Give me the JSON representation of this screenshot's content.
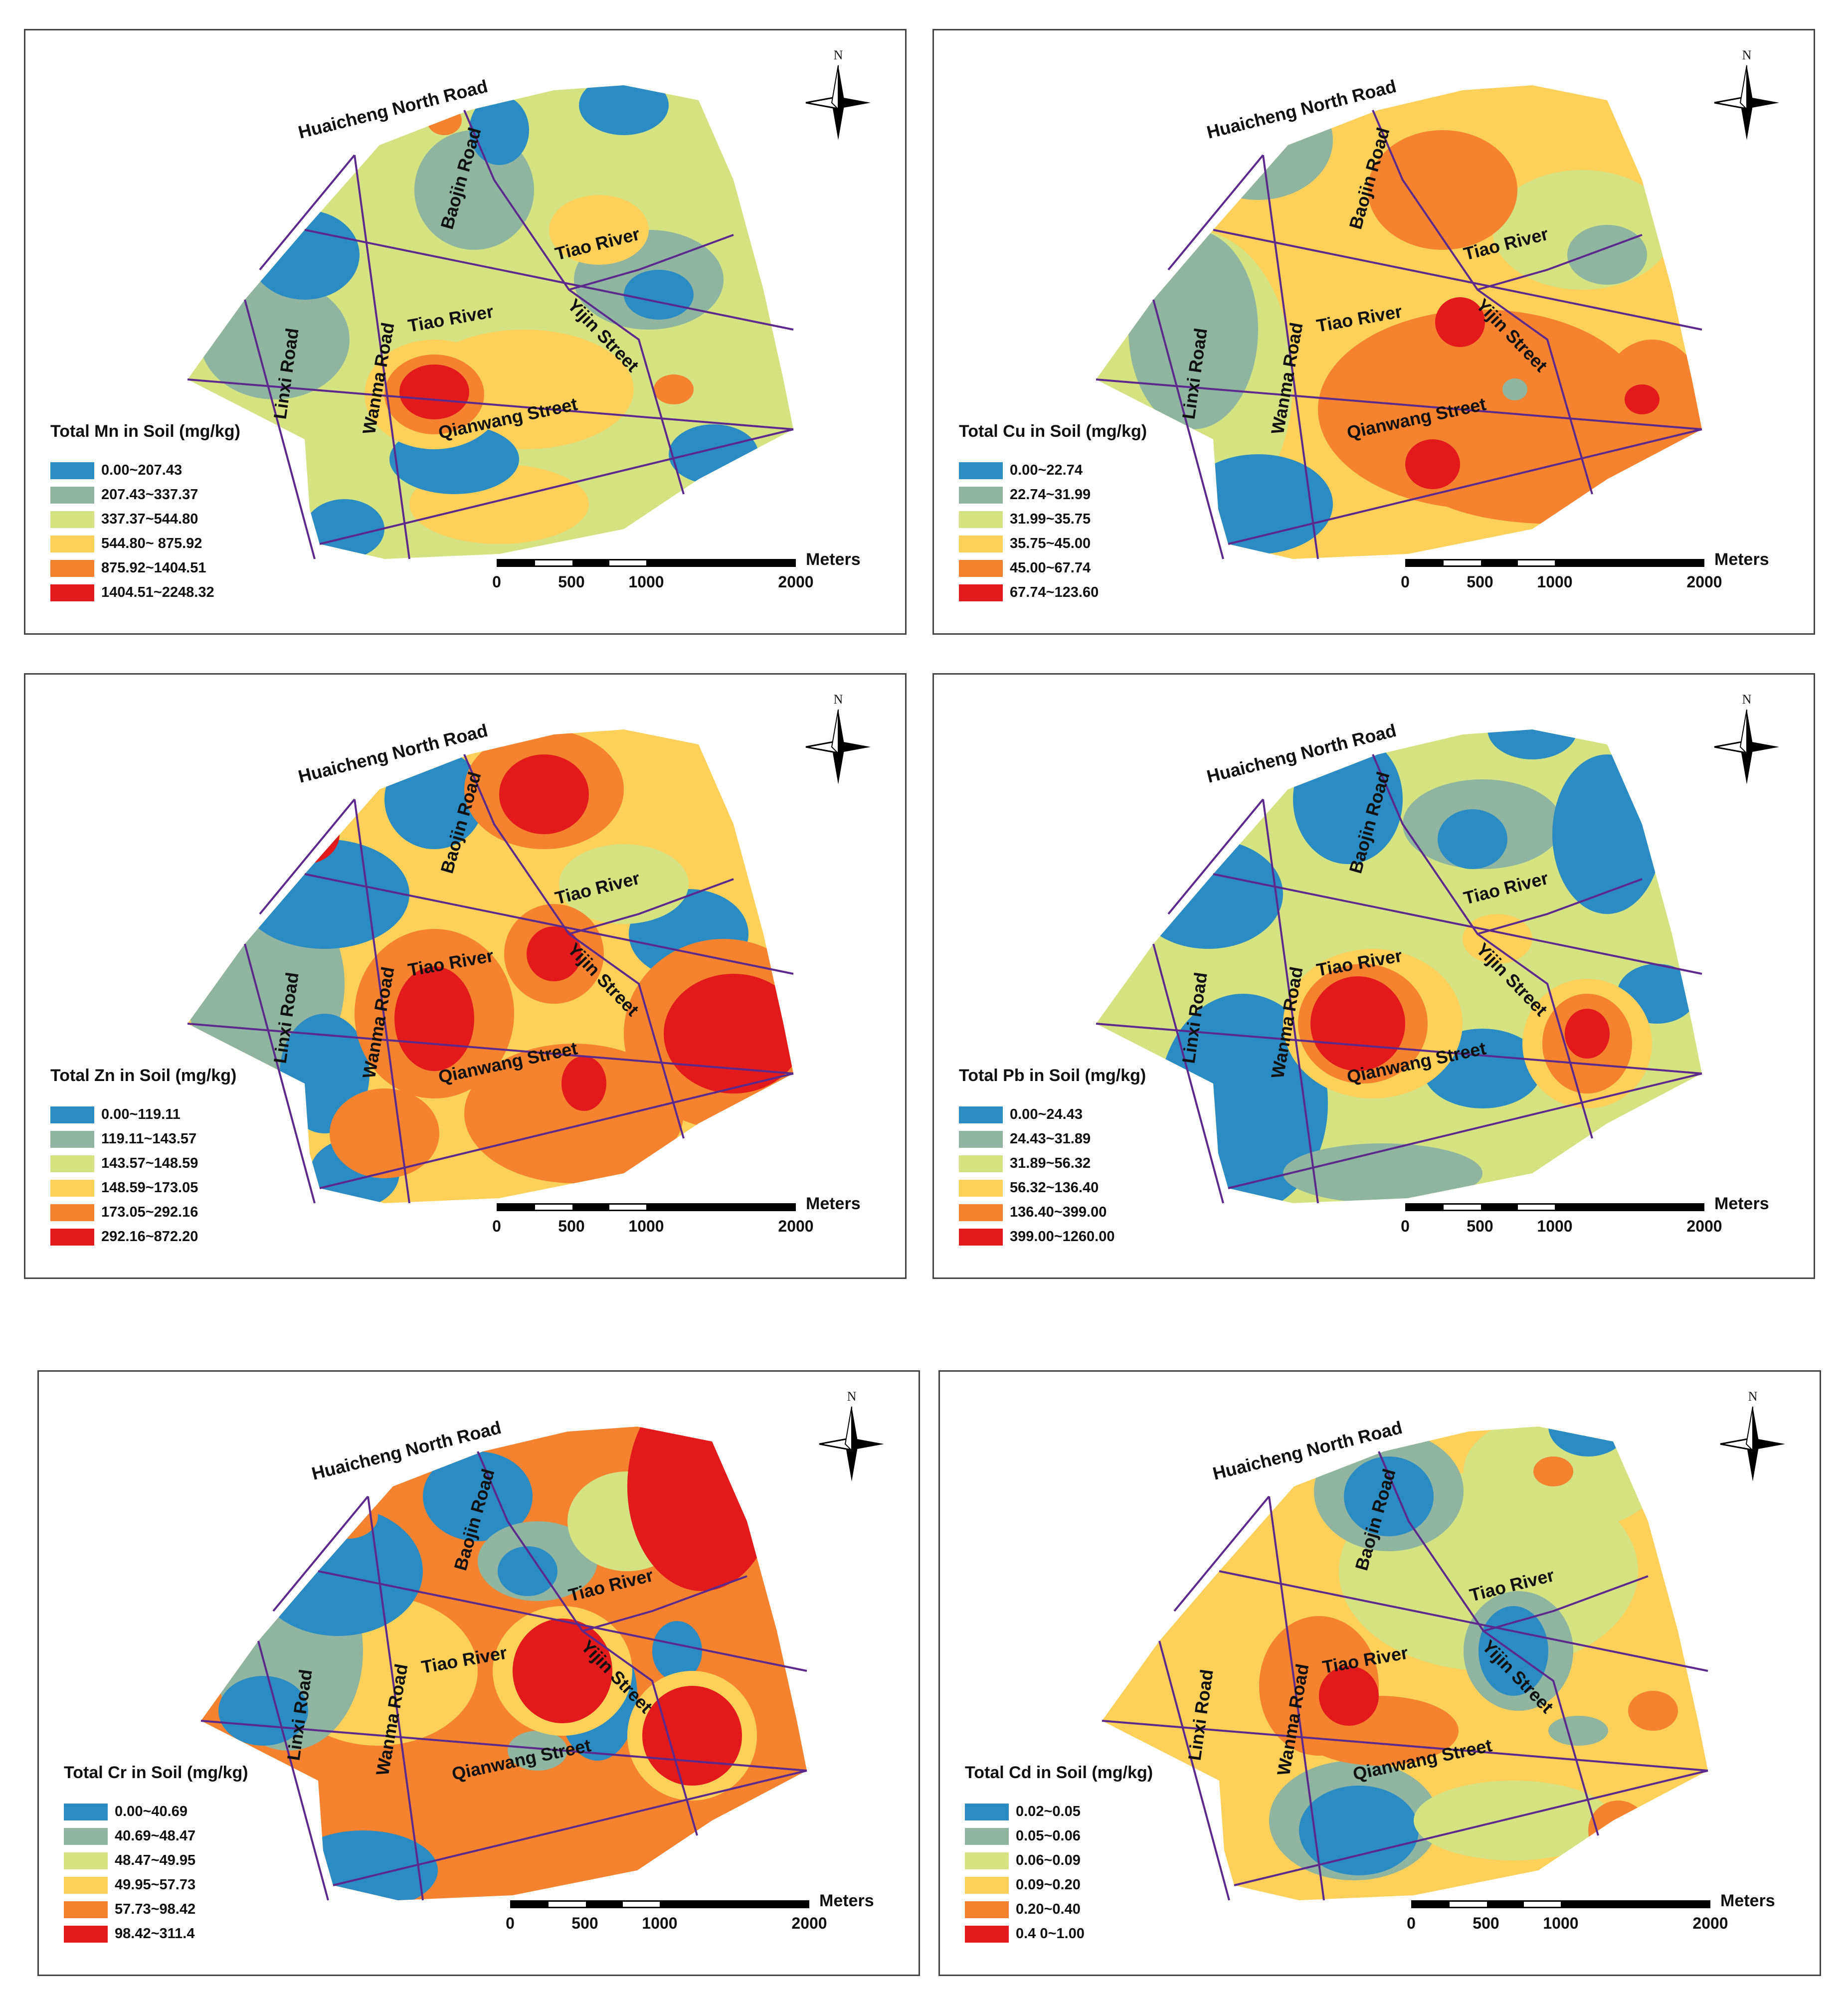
{
  "panels": [
    {
      "id": "mn",
      "legend_title": "Total Mn in Soil (mg/kg)",
      "classes": [
        "0.00~207.43",
        "207.43~337.37",
        "337.37~544.80",
        "544.80~ 875.92",
        "875.92~1404.51",
        "1404.51~2248.32"
      ]
    },
    {
      "id": "cu",
      "legend_title": "Total Cu in Soil (mg/kg)",
      "classes": [
        "0.00~22.74",
        "22.74~31.99",
        "31.99~35.75",
        "35.75~45.00",
        "45.00~67.74",
        "67.74~123.60"
      ]
    },
    {
      "id": "zn",
      "legend_title": "Total Zn in Soil (mg/kg)",
      "classes": [
        "0.00~119.11",
        "119.11~143.57",
        "143.57~148.59",
        "148.59~173.05",
        "173.05~292.16",
        "292.16~872.20"
      ]
    },
    {
      "id": "pb",
      "legend_title": "Total Pb in Soil (mg/kg)",
      "classes": [
        "0.00~24.43",
        "24.43~31.89",
        "31.89~56.32",
        "56.32~136.40",
        "136.40~399.00",
        "399.00~1260.00"
      ]
    },
    {
      "id": "cr",
      "legend_title": "Total Cr in Soil (mg/kg)",
      "classes": [
        "0.00~40.69",
        "40.69~48.47",
        "48.47~49.95",
        "49.95~57.73",
        "57.73~98.42",
        "98.42~311.4"
      ]
    },
    {
      "id": "cd",
      "legend_title": "Total Cd in Soil (mg/kg)",
      "classes": [
        "0.02~0.05",
        "0.05~0.06",
        "0.06~0.09",
        "0.09~0.20",
        "0.20~0.40",
        "0.4 0~1.00"
      ]
    }
  ],
  "class_colors": [
    "#2b8cc4",
    "#8fb5a0",
    "#d4e281",
    "#fdd05a",
    "#f5822e",
    "#e31a1c"
  ],
  "roads": {
    "huaicheng": "Huaicheng North Road",
    "baojin": "Baojin Road",
    "tiao": "Tiao River",
    "yijin": "Yijin Street",
    "linxi": "Linxi Road",
    "wanma": "Wanma Road",
    "qianwang": "Qianwang Street"
  },
  "scale": {
    "unit": "Meters",
    "ticks": [
      "0",
      "500",
      "1000",
      "2000"
    ]
  },
  "north_label": "N"
}
